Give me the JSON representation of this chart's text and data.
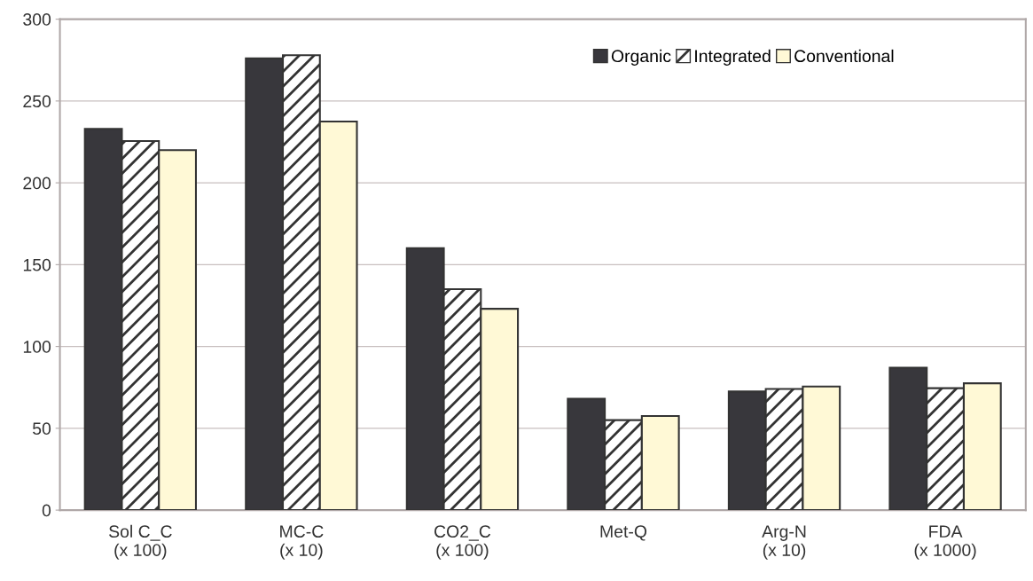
{
  "chart_data": {
    "type": "bar",
    "categories": [
      "Sol C_C\n(x 100)",
      "MC-C\n(x 10)",
      "CO2_C\n(x 100)",
      "Met-Q",
      "Arg-N\n(x 10)",
      "FDA\n(x 1000)"
    ],
    "series": [
      {
        "name": "Organic",
        "color": "#38373c",
        "values": [
          233,
          276,
          160,
          68,
          72.5,
          87
        ]
      },
      {
        "name": "Integrated",
        "color": "#333333",
        "values": [
          225.5,
          278,
          135,
          55,
          74,
          74.5
        ]
      },
      {
        "name": "Conventional",
        "color": "#fff9d6",
        "values": [
          220,
          237.5,
          123,
          57.5,
          75.5,
          77.5
        ]
      }
    ],
    "ylim": [
      0,
      300
    ],
    "yticks": [
      0,
      50,
      100,
      150,
      200,
      250,
      300
    ],
    "grid": "y",
    "legend": "top right"
  }
}
